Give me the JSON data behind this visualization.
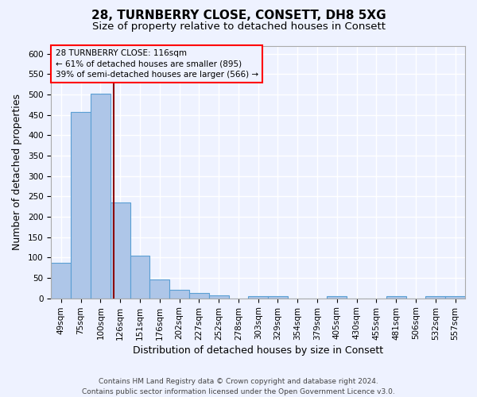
{
  "title_line1": "28, TURNBERRY CLOSE, CONSETT, DH8 5XG",
  "title_line2": "Size of property relative to detached houses in Consett",
  "xlabel": "Distribution of detached houses by size in Consett",
  "ylabel": "Number of detached properties",
  "categories": [
    "49sqm",
    "75sqm",
    "100sqm",
    "126sqm",
    "151sqm",
    "176sqm",
    "202sqm",
    "227sqm",
    "252sqm",
    "278sqm",
    "303sqm",
    "329sqm",
    "354sqm",
    "379sqm",
    "405sqm",
    "430sqm",
    "455sqm",
    "481sqm",
    "506sqm",
    "532sqm",
    "557sqm"
  ],
  "values": [
    88,
    458,
    503,
    236,
    105,
    47,
    20,
    14,
    8,
    0,
    5,
    5,
    0,
    0,
    5,
    0,
    0,
    5,
    0,
    5,
    5
  ],
  "bar_color": "#aec6e8",
  "bar_edge_color": "#5a9fd4",
  "property_line_x": 2.65,
  "property_line_color": "#8b0000",
  "annotation_line1": "28 TURNBERRY CLOSE: 116sqm",
  "annotation_line2": "← 61% of detached houses are smaller (895)",
  "annotation_line3": "39% of semi-detached houses are larger (566) →",
  "ylim": [
    0,
    620
  ],
  "yticks": [
    0,
    50,
    100,
    150,
    200,
    250,
    300,
    350,
    400,
    450,
    500,
    550,
    600
  ],
  "footnote_line1": "Contains HM Land Registry data © Crown copyright and database right 2024.",
  "footnote_line2": "Contains public sector information licensed under the Open Government Licence v3.0.",
  "bg_color": "#eef2ff",
  "grid_color": "#ffffff",
  "title_fontsize": 11,
  "subtitle_fontsize": 9.5,
  "tick_fontsize": 7.5,
  "label_fontsize": 9,
  "footnote_fontsize": 6.5
}
